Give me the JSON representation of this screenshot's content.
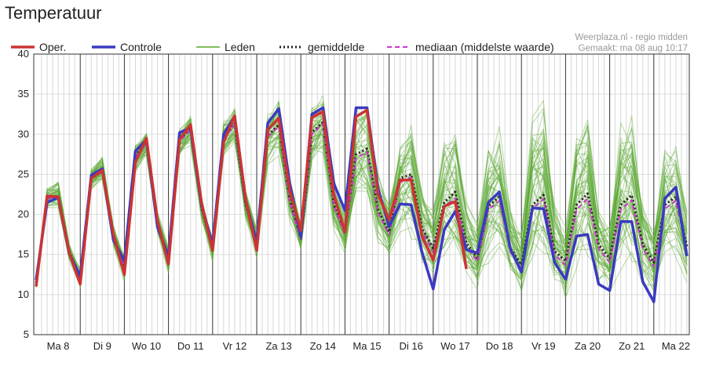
{
  "page": {
    "title": "Temperatuur"
  },
  "chart_data": {
    "type": "line",
    "title": "Temperatuur",
    "source_label": "Weerplaza.nl - regio midden",
    "generated_label": "Gemaakt: ma 08 aug 10:17",
    "ylim": [
      5,
      40
    ],
    "yticks": [
      5,
      10,
      15,
      20,
      25,
      30,
      35,
      40
    ],
    "xlim": [
      0,
      14.75
    ],
    "x_unit": "dagen",
    "day_labels": [
      "Ma 8",
      "Di 9",
      "Wo 10",
      "Do 11",
      "Vr 12",
      "Za 13",
      "Zo 14",
      "Ma 15",
      "Di 16",
      "Wo 17",
      "Do 18",
      "Vr 19",
      "Za 20",
      "Zo 21",
      "Ma 22"
    ],
    "grid": true,
    "legend_position": "top",
    "colors": {
      "oper": "#cc3333",
      "controle": "#3a3ac0",
      "leden": "#5aa832",
      "gemiddelde": "#222222",
      "mediaan": "#cc33cc"
    },
    "series": [
      {
        "name": "Oper.",
        "style": "solid-red",
        "x": [
          0,
          0.25,
          0.5,
          0.75,
          1,
          1.25,
          1.5,
          1.75,
          2,
          2.25,
          2.5,
          2.75,
          3,
          3.25,
          3.5,
          3.75,
          4,
          4.25,
          4.5,
          4.75,
          5,
          5.25,
          5.5,
          5.75,
          6,
          6.25,
          6.5,
          6.75,
          7,
          7.25,
          7.5,
          7.75,
          8,
          8.25,
          8.5,
          8.75,
          9,
          9.25,
          9.5,
          9.75
        ],
        "y": [
          11,
          22.3,
          22.2,
          15.2,
          11.3,
          24.5,
          25.5,
          17.5,
          12.5,
          26.5,
          29.5,
          19.2,
          13.8,
          29.3,
          31.2,
          21.4,
          15.5,
          29,
          32.3,
          21.9,
          15.5,
          30.6,
          32,
          22.9,
          18,
          32.1,
          32.8,
          22.4,
          17.8,
          32.2,
          33,
          22.5,
          19.3,
          24.3,
          24.3,
          17.2,
          14.3,
          21,
          21.6,
          13.2
        ]
      },
      {
        "name": "Controle",
        "style": "solid-blue",
        "x": [
          0,
          0.25,
          0.5,
          0.75,
          1,
          1.25,
          1.5,
          1.75,
          2,
          2.25,
          2.5,
          2.75,
          3,
          3.25,
          3.5,
          3.75,
          4,
          4.25,
          4.5,
          4.75,
          5,
          5.25,
          5.5,
          5.75,
          6,
          6.25,
          6.5,
          6.75,
          7,
          7.25,
          7.5,
          7.75,
          8,
          8.25,
          8.5,
          8.75,
          9,
          9.25,
          9.5,
          9.75,
          10,
          10.25,
          10.5,
          10.75,
          11,
          11.25,
          11.5,
          11.75,
          12,
          12.25,
          12.5,
          12.75,
          13,
          13.25,
          13.5,
          13.75,
          14,
          14.25,
          14.5,
          14.75
        ],
        "y": [
          11.8,
          21.5,
          22.1,
          15.1,
          12.3,
          24.9,
          25.7,
          16.8,
          14.2,
          27.9,
          29.3,
          18.4,
          14.8,
          30.2,
          30.8,
          21.1,
          16.3,
          30,
          32.2,
          21.7,
          16.5,
          31.4,
          33.2,
          23.8,
          17.2,
          32.5,
          33.3,
          23.8,
          20.5,
          33.3,
          33.3,
          23.2,
          18.5,
          21.3,
          21.2,
          15.2,
          10.7,
          18.1,
          20.4,
          15.6,
          15.2,
          21.5,
          22.8,
          15.7,
          12.8,
          20.8,
          20.7,
          14,
          11.9,
          17.3,
          17.5,
          11.3,
          10.5,
          19.1,
          19.1,
          11.6,
          9.1,
          22,
          23.4,
          14.8
        ]
      },
      {
        "name": "gemiddelde",
        "style": "dotted-black",
        "x": [
          0,
          0.25,
          0.5,
          0.75,
          1,
          1.25,
          1.5,
          1.75,
          2,
          2.25,
          2.5,
          2.75,
          3,
          3.25,
          3.5,
          3.75,
          4,
          4.25,
          4.5,
          4.75,
          5,
          5.25,
          5.5,
          5.75,
          6,
          6.25,
          6.5,
          6.75,
          7,
          7.25,
          7.5,
          7.75,
          8,
          8.25,
          8.5,
          8.75,
          9,
          9.25,
          9.5,
          9.75,
          10,
          10.25,
          10.5,
          10.75,
          11,
          11.25,
          11.5,
          11.75,
          12,
          12.25,
          12.5,
          12.75,
          13,
          13.25,
          13.5,
          13.75,
          14,
          14.25,
          14.5,
          14.75
        ],
        "y": [
          11.5,
          22,
          22.3,
          15.3,
          12,
          24.5,
          25.4,
          17.4,
          13.5,
          27.3,
          29,
          19,
          14.4,
          29.3,
          30.6,
          20.8,
          15.8,
          29.5,
          31.3,
          21.3,
          16.4,
          29.8,
          31.2,
          21.8,
          17,
          30.2,
          31.5,
          21.2,
          17.8,
          27.5,
          28.2,
          20.5,
          17.8,
          24.5,
          25,
          18.2,
          15.8,
          21.5,
          22.8,
          16.4,
          14.6,
          21,
          22.2,
          15.8,
          13.7,
          21.2,
          22.4,
          15.4,
          14.2,
          21.2,
          22.6,
          16.2,
          14.5,
          21.2,
          22.4,
          16.2,
          14,
          21.2,
          22.2,
          16
        ]
      },
      {
        "name": "mediaan (middelste waarde)",
        "style": "dashed-magenta",
        "x": [
          0,
          0.25,
          0.5,
          0.75,
          1,
          1.25,
          1.5,
          1.75,
          2,
          2.25,
          2.5,
          2.75,
          3,
          3.25,
          3.5,
          3.75,
          4,
          4.25,
          4.5,
          4.75,
          5,
          5.25,
          5.5,
          5.75,
          6,
          6.25,
          6.5,
          6.75,
          7,
          7.25,
          7.5,
          7.75,
          8,
          8.25,
          8.5,
          8.75,
          9,
          9.25,
          9.5,
          9.75,
          10,
          10.25,
          10.5,
          10.75,
          11,
          11.25,
          11.5,
          11.75,
          12,
          12.25,
          12.5,
          12.75,
          13,
          13.25,
          13.5,
          13.75,
          14,
          14.25,
          14.5,
          14.75
        ],
        "y": [
          11.5,
          22,
          22.2,
          15.2,
          12,
          24.5,
          25.3,
          17.3,
          13.5,
          27.2,
          28.8,
          18.9,
          14.3,
          29.2,
          30.5,
          20.7,
          15.7,
          29.4,
          31.2,
          21.2,
          16.2,
          29.7,
          31,
          21.6,
          16.8,
          30,
          31.3,
          21,
          17.5,
          27,
          27.8,
          20.2,
          17.5,
          24,
          24.6,
          17.8,
          15.3,
          21,
          22,
          16,
          14.1,
          20.6,
          21.7,
          15.3,
          13.2,
          20.7,
          21.9,
          15,
          13.7,
          20.6,
          22,
          15.7,
          14,
          20.6,
          21.8,
          15.7,
          13.5,
          20.7,
          21.7,
          15.5
        ]
      },
      {
        "name": "Leden",
        "style": "ensemble-green",
        "ensemble": true,
        "x": [
          0,
          0.25,
          0.5,
          0.75,
          1,
          1.25,
          1.5,
          1.75,
          2,
          2.25,
          2.5,
          2.75,
          3,
          3.25,
          3.5,
          3.75,
          4,
          4.25,
          4.5,
          4.75,
          5,
          5.25,
          5.5,
          5.75,
          6,
          6.25,
          6.5,
          6.75,
          7,
          7.25,
          7.5,
          7.75,
          8,
          8.25,
          8.5,
          8.75,
          9,
          9.25,
          9.5,
          9.75,
          10,
          10.25,
          10.5,
          10.75,
          11,
          11.25,
          11.5,
          11.75,
          12,
          12.25,
          12.5,
          12.75,
          13,
          13.25,
          13.5,
          13.75,
          14,
          14.25,
          14.5,
          14.75
        ],
        "y": [
          11.5,
          22,
          22.3,
          15.3,
          12,
          24.5,
          25.4,
          17.4,
          13.5,
          27.3,
          29,
          19,
          14.4,
          29.3,
          30.6,
          20.8,
          15.8,
          29.5,
          31.3,
          21.3,
          16.4,
          29.8,
          31.2,
          21.8,
          17,
          30.2,
          31.5,
          21.2,
          17.8,
          27.5,
          28.2,
          20.5,
          17.8,
          24.5,
          25,
          18.2,
          15.8,
          21.5,
          22.8,
          16.4,
          14.6,
          21,
          22.2,
          15.8,
          13.7,
          21.2,
          22.4,
          15.4,
          14.2,
          21.2,
          22.6,
          16.2,
          14.5,
          21.2,
          22.4,
          16.2,
          14,
          21.2,
          22.2,
          16
        ],
        "spread_min": [
          10.5,
          20.5,
          20.5,
          14,
          10.5,
          23,
          24,
          16,
          11.5,
          25,
          27,
          17.5,
          12.5,
          27,
          28.5,
          19,
          14,
          27,
          28.5,
          19,
          14.5,
          26,
          27,
          19,
          15,
          26,
          27,
          18,
          15,
          21,
          21,
          16,
          14,
          17,
          16.5,
          13,
          11.5,
          14.5,
          15,
          12,
          10,
          13.5,
          14,
          11.5,
          8.5,
          13,
          13.5,
          11,
          9.5,
          13,
          13.5,
          11,
          9.5,
          13,
          13.5,
          11,
          9.5,
          14,
          14.5,
          11
        ],
        "spread_max": [
          12.5,
          23.5,
          24.5,
          16.5,
          13.5,
          26,
          27.5,
          19,
          15,
          29,
          30.5,
          20.5,
          16,
          31,
          32.5,
          22.5,
          17.5,
          32,
          34,
          23.5,
          18.5,
          33,
          35,
          25,
          19.5,
          34,
          35.5,
          25,
          21,
          34,
          35,
          26,
          22,
          30,
          32.5,
          24,
          21.5,
          30,
          31.5,
          22,
          19.5,
          30,
          32,
          22,
          19,
          34,
          35,
          22,
          19,
          32,
          34,
          22,
          19.5,
          33,
          34.5,
          22,
          19,
          29,
          29.5,
          21
        ]
      }
    ]
  }
}
